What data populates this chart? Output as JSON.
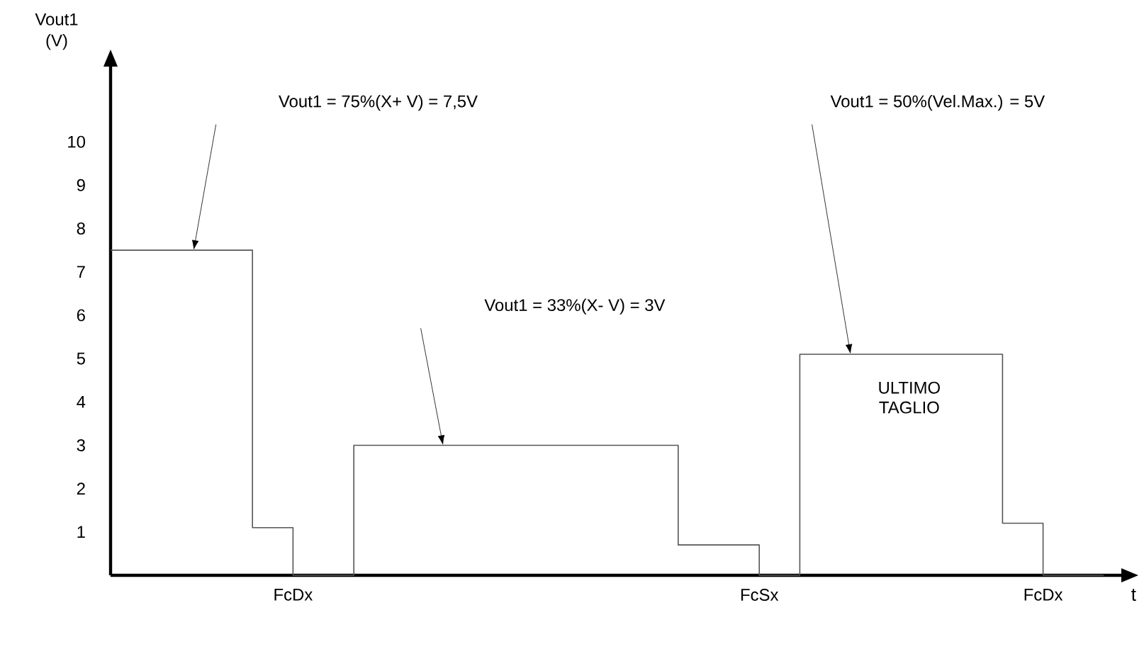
{
  "chart_data": {
    "type": "step",
    "xlabel": "t",
    "ylabel": "Vout1 (V)",
    "color": "#555555",
    "categories": [
      null,
      null,
      null,
      null,
      null,
      null,
      null,
      null,
      null,
      "FcDx",
      null,
      null,
      null,
      null,
      null,
      null,
      null,
      null,
      null,
      null,
      null,
      null,
      null,
      null,
      null,
      null,
      null,
      null,
      null,
      null,
      null,
      null,
      "FcSx",
      null,
      null,
      null,
      null,
      null,
      null,
      null,
      null,
      null,
      null,
      null,
      null,
      null,
      "FcDx",
      null,
      null,
      null
    ],
    "values": [
      7.5,
      7.5,
      7.5,
      7.5,
      7.5,
      7.5,
      7.5,
      1.1,
      1.1,
      0,
      0,
      0,
      3,
      3,
      3,
      3,
      3,
      3,
      3,
      3,
      3,
      3,
      3,
      3,
      3,
      3,
      3,
      3,
      0.7,
      0.7,
      0.7,
      0.7,
      0,
      0,
      5.1,
      5.1,
      5.1,
      5.1,
      5.1,
      5.1,
      5.1,
      5.1,
      5.1,
      5.1,
      1.2,
      1.2,
      0,
      0,
      0,
      0
    ],
    "ylim": [
      0,
      11.8
    ],
    "yticks": [
      1,
      2,
      3,
      4,
      5,
      6,
      7,
      8,
      9,
      10
    ],
    "annotations": [
      "Vout1 = 75%(X+ V) = 7,5V",
      "Vout1 = 33%(X- V) = 3V",
      "Vout1 = 50%(Vel.Max.) = 5V",
      "ULTIMO TAGLIO"
    ]
  }
}
